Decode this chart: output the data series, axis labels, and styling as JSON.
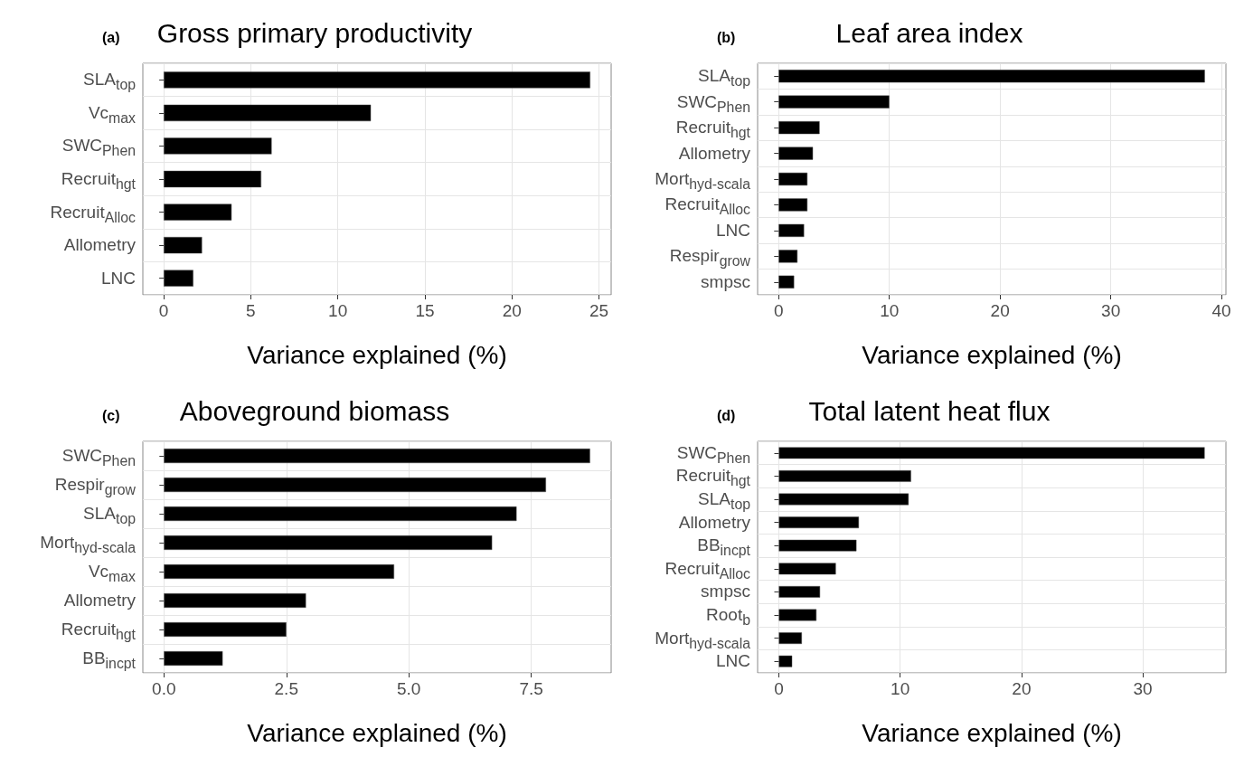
{
  "chart_data": [
    {
      "type": "bar",
      "orientation": "horizontal",
      "title": "Gross primary productivity",
      "annotations": [
        "(a)"
      ],
      "xlabel": "Variance explained (%)",
      "categories": [
        "SLA$_{top}$",
        "Vc$_{max}$",
        "SWC$_{Phen}$",
        "Recruit$_{hgt}$",
        "Recruit$_{Alloc}$",
        "Allometry",
        "LNC"
      ],
      "values": [
        24.5,
        11.9,
        6.2,
        5.6,
        3.9,
        2.2,
        1.7
      ],
      "color": "#000000",
      "xlim": [
        -1.2,
        25.7
      ],
      "xticks": [
        0,
        5,
        10,
        15,
        20,
        25
      ],
      "grid": true
    },
    {
      "type": "bar",
      "orientation": "horizontal",
      "title": "Leaf area index",
      "annotations": [
        "(b)"
      ],
      "xlabel": "Variance explained (%)",
      "categories": [
        "SLA$_{top}$",
        "SWC$_{Phen}$",
        "Recruit$_{hgt}$",
        "Allometry",
        "Mort$_{hyd-scala}$",
        "Recruit$_{Alloc}$",
        "LNC",
        "Respir$_{grow}$",
        "smpsc"
      ],
      "values": [
        38.5,
        10.0,
        3.7,
        3.1,
        2.6,
        2.6,
        2.3,
        1.7,
        1.4
      ],
      "color": "#000000",
      "xlim": [
        -1.9,
        40.4
      ],
      "xticks": [
        0,
        10,
        20,
        30,
        40
      ],
      "grid": true
    },
    {
      "type": "bar",
      "orientation": "horizontal",
      "title": "Aboveground biomass",
      "annotations": [
        "(c)"
      ],
      "xlabel": "Variance explained (%)",
      "categories": [
        "SWC$_{Phen}$",
        "Respir$_{grow}$",
        "SLA$_{top}$",
        "Mort$_{hyd-scala}$",
        "Vc$_{max}$",
        "Allometry",
        "Recruit$_{hgt}$",
        "BB$_{incpt}$"
      ],
      "values": [
        8.7,
        7.8,
        7.2,
        6.7,
        4.7,
        2.9,
        2.5,
        1.2
      ],
      "color": "#000000",
      "xlim": [
        -0.43,
        9.13
      ],
      "xticks": [
        {
          "value": 0,
          "label": "0.0"
        },
        2.5,
        {
          "value": 5,
          "label": "5.0"
        },
        7.5
      ],
      "grid": true
    },
    {
      "type": "bar",
      "orientation": "horizontal",
      "title": "Total latent heat flux",
      "annotations": [
        "(d)"
      ],
      "xlabel": "Variance explained (%)",
      "categories": [
        "SWC$_{Phen}$",
        "Recruit$_{hgt}$",
        "SLA$_{top}$",
        "Allometry",
        "BB$_{incpt}$",
        "Recruit$_{Alloc}$",
        "smpsc",
        "Root$_{b}$",
        "Mort$_{hyd-scala}$",
        "LNC"
      ],
      "values": [
        35.1,
        10.9,
        10.7,
        6.6,
        6.4,
        4.7,
        3.4,
        3.1,
        1.9,
        1.1
      ],
      "color": "#000000",
      "xlim": [
        -1.75,
        36.85
      ],
      "xticks": [
        0,
        10,
        20,
        30
      ],
      "grid": true
    }
  ]
}
